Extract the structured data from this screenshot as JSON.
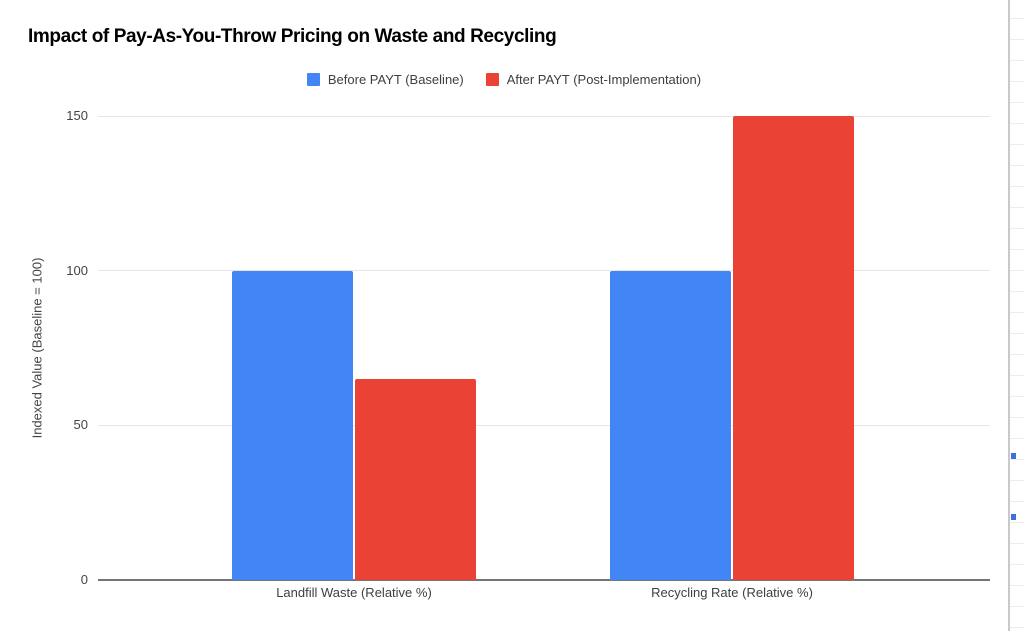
{
  "chart_data": {
    "type": "bar",
    "title": "Impact of Pay-As-You-Throw Pricing on Waste and Recycling",
    "categories": [
      "Landfill Waste (Relative %)",
      "Recycling Rate (Relative %)"
    ],
    "series": [
      {
        "name": "Before PAYT (Baseline)",
        "color": "#4285F4",
        "values": [
          100,
          100
        ]
      },
      {
        "name": "After PAYT (Post-Implementation)",
        "color": "#EA4335",
        "values": [
          65,
          150
        ]
      }
    ],
    "xlabel": "",
    "ylabel": "Indexed Value (Baseline = 100)",
    "ylim": [
      0,
      150
    ],
    "yticks": [
      0,
      50,
      100,
      150
    ],
    "grid": true,
    "legend_position": "top"
  },
  "colors": {
    "series_blue": "#4285F4",
    "series_red": "#EA4335",
    "gridline": "#e6e6e6",
    "axis_line": "#757575",
    "sheet_divider": "#c9c9c9",
    "selection_handle_blue": "#3e6fe0"
  }
}
